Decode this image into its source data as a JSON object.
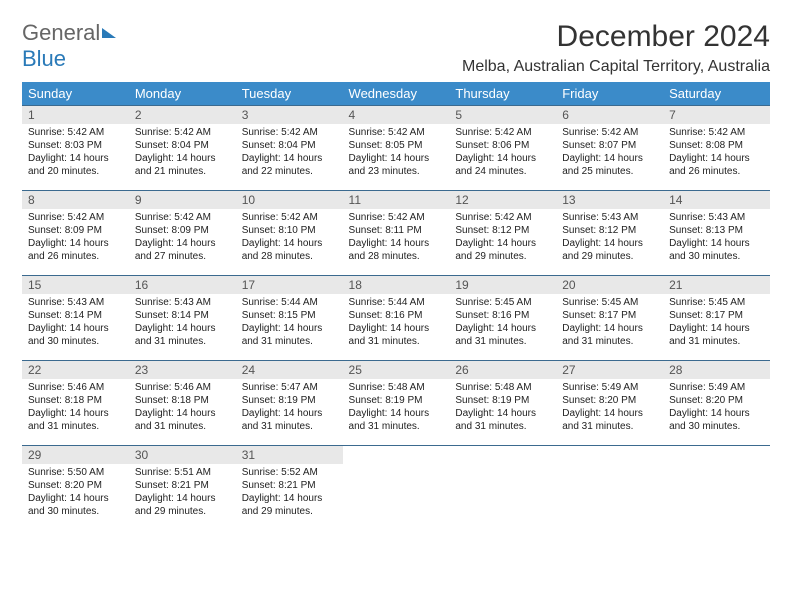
{
  "logo": {
    "line1": "General",
    "line2": "Blue"
  },
  "title": "December 2024",
  "subtitle": "Melba, Australian Capital Territory, Australia",
  "header_bg": "#3b8bc9",
  "header_text": "#ffffff",
  "daynum_bg": "#e8e8e8",
  "border_color": "#3b6a8f",
  "weekdays": [
    "Sunday",
    "Monday",
    "Tuesday",
    "Wednesday",
    "Thursday",
    "Friday",
    "Saturday"
  ],
  "days": [
    {
      "n": "1",
      "sr": "5:42 AM",
      "ss": "8:03 PM",
      "dl": "14 hours and 20 minutes."
    },
    {
      "n": "2",
      "sr": "5:42 AM",
      "ss": "8:04 PM",
      "dl": "14 hours and 21 minutes."
    },
    {
      "n": "3",
      "sr": "5:42 AM",
      "ss": "8:04 PM",
      "dl": "14 hours and 22 minutes."
    },
    {
      "n": "4",
      "sr": "5:42 AM",
      "ss": "8:05 PM",
      "dl": "14 hours and 23 minutes."
    },
    {
      "n": "5",
      "sr": "5:42 AM",
      "ss": "8:06 PM",
      "dl": "14 hours and 24 minutes."
    },
    {
      "n": "6",
      "sr": "5:42 AM",
      "ss": "8:07 PM",
      "dl": "14 hours and 25 minutes."
    },
    {
      "n": "7",
      "sr": "5:42 AM",
      "ss": "8:08 PM",
      "dl": "14 hours and 26 minutes."
    },
    {
      "n": "8",
      "sr": "5:42 AM",
      "ss": "8:09 PM",
      "dl": "14 hours and 26 minutes."
    },
    {
      "n": "9",
      "sr": "5:42 AM",
      "ss": "8:09 PM",
      "dl": "14 hours and 27 minutes."
    },
    {
      "n": "10",
      "sr": "5:42 AM",
      "ss": "8:10 PM",
      "dl": "14 hours and 28 minutes."
    },
    {
      "n": "11",
      "sr": "5:42 AM",
      "ss": "8:11 PM",
      "dl": "14 hours and 28 minutes."
    },
    {
      "n": "12",
      "sr": "5:42 AM",
      "ss": "8:12 PM",
      "dl": "14 hours and 29 minutes."
    },
    {
      "n": "13",
      "sr": "5:43 AM",
      "ss": "8:12 PM",
      "dl": "14 hours and 29 minutes."
    },
    {
      "n": "14",
      "sr": "5:43 AM",
      "ss": "8:13 PM",
      "dl": "14 hours and 30 minutes."
    },
    {
      "n": "15",
      "sr": "5:43 AM",
      "ss": "8:14 PM",
      "dl": "14 hours and 30 minutes."
    },
    {
      "n": "16",
      "sr": "5:43 AM",
      "ss": "8:14 PM",
      "dl": "14 hours and 31 minutes."
    },
    {
      "n": "17",
      "sr": "5:44 AM",
      "ss": "8:15 PM",
      "dl": "14 hours and 31 minutes."
    },
    {
      "n": "18",
      "sr": "5:44 AM",
      "ss": "8:16 PM",
      "dl": "14 hours and 31 minutes."
    },
    {
      "n": "19",
      "sr": "5:45 AM",
      "ss": "8:16 PM",
      "dl": "14 hours and 31 minutes."
    },
    {
      "n": "20",
      "sr": "5:45 AM",
      "ss": "8:17 PM",
      "dl": "14 hours and 31 minutes."
    },
    {
      "n": "21",
      "sr": "5:45 AM",
      "ss": "8:17 PM",
      "dl": "14 hours and 31 minutes."
    },
    {
      "n": "22",
      "sr": "5:46 AM",
      "ss": "8:18 PM",
      "dl": "14 hours and 31 minutes."
    },
    {
      "n": "23",
      "sr": "5:46 AM",
      "ss": "8:18 PM",
      "dl": "14 hours and 31 minutes."
    },
    {
      "n": "24",
      "sr": "5:47 AM",
      "ss": "8:19 PM",
      "dl": "14 hours and 31 minutes."
    },
    {
      "n": "25",
      "sr": "5:48 AM",
      "ss": "8:19 PM",
      "dl": "14 hours and 31 minutes."
    },
    {
      "n": "26",
      "sr": "5:48 AM",
      "ss": "8:19 PM",
      "dl": "14 hours and 31 minutes."
    },
    {
      "n": "27",
      "sr": "5:49 AM",
      "ss": "8:20 PM",
      "dl": "14 hours and 31 minutes."
    },
    {
      "n": "28",
      "sr": "5:49 AM",
      "ss": "8:20 PM",
      "dl": "14 hours and 30 minutes."
    },
    {
      "n": "29",
      "sr": "5:50 AM",
      "ss": "8:20 PM",
      "dl": "14 hours and 30 minutes."
    },
    {
      "n": "30",
      "sr": "5:51 AM",
      "ss": "8:21 PM",
      "dl": "14 hours and 29 minutes."
    },
    {
      "n": "31",
      "sr": "5:52 AM",
      "ss": "8:21 PM",
      "dl": "14 hours and 29 minutes."
    }
  ],
  "labels": {
    "sunrise": "Sunrise:",
    "sunset": "Sunset:",
    "daylight": "Daylight:"
  }
}
